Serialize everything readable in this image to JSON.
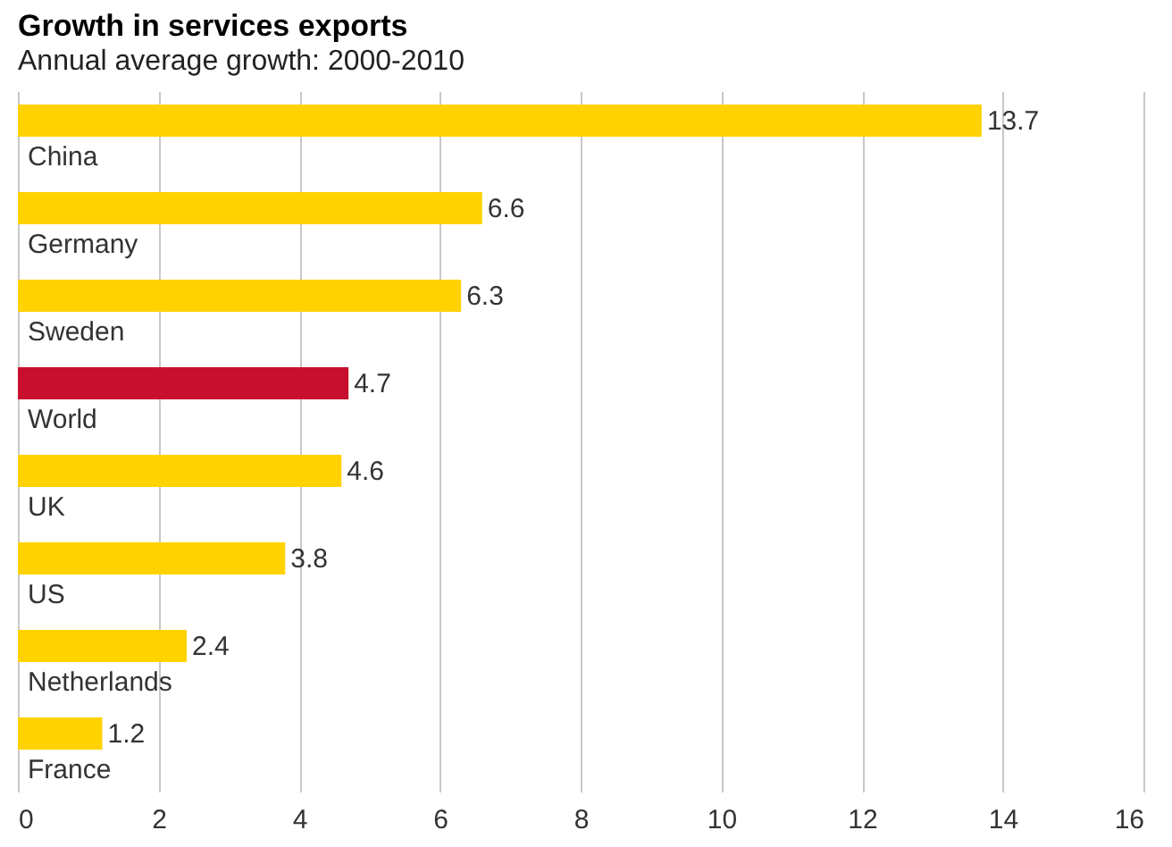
{
  "chart_data": {
    "type": "bar",
    "orientation": "horizontal",
    "title": "Growth in services exports",
    "subtitle": "Annual average growth: 2000-2010",
    "categories": [
      "China",
      "Germany",
      "Sweden",
      "World",
      "UK",
      "US",
      "Netherlands",
      "France"
    ],
    "values": [
      13.7,
      6.6,
      6.3,
      4.7,
      4.6,
      3.8,
      2.4,
      1.2
    ],
    "colors": [
      "#ffd200",
      "#ffd200",
      "#ffd200",
      "#c8102e",
      "#ffd200",
      "#ffd200",
      "#ffd200",
      "#ffd200"
    ],
    "xlim": [
      0,
      16
    ],
    "xticks": [
      0,
      2,
      4,
      6,
      8,
      10,
      12,
      14,
      16
    ],
    "grid": "x",
    "data_labels": true
  }
}
